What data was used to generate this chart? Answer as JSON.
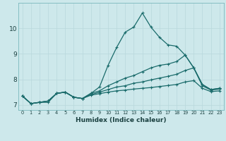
{
  "xlabel": "Humidex (Indice chaleur)",
  "bg_color": "#cde8eb",
  "line_color": "#1a6b6b",
  "grid_color": "#b8d8dc",
  "xlim": [
    -0.5,
    23.5
  ],
  "ylim": [
    6.8,
    11.0
  ],
  "xticks": [
    0,
    1,
    2,
    3,
    4,
    5,
    6,
    7,
    8,
    9,
    10,
    11,
    12,
    13,
    14,
    15,
    16,
    17,
    18,
    19,
    20,
    21,
    22,
    23
  ],
  "yticks": [
    7,
    8,
    9,
    10
  ],
  "series": [
    [
      7.35,
      7.05,
      7.1,
      7.1,
      7.45,
      7.5,
      7.3,
      7.25,
      7.45,
      7.7,
      8.55,
      9.25,
      9.85,
      10.05,
      10.6,
      10.05,
      9.65,
      9.35,
      9.3,
      8.95,
      8.45,
      7.8,
      7.6,
      7.65
    ],
    [
      7.35,
      7.05,
      7.1,
      7.15,
      7.45,
      7.5,
      7.3,
      7.25,
      7.45,
      7.55,
      7.75,
      7.9,
      8.05,
      8.15,
      8.3,
      8.45,
      8.55,
      8.6,
      8.7,
      8.95,
      8.45,
      7.8,
      7.6,
      7.65
    ],
    [
      7.35,
      7.05,
      7.1,
      7.15,
      7.45,
      7.5,
      7.3,
      7.25,
      7.4,
      7.5,
      7.6,
      7.7,
      7.75,
      7.85,
      7.9,
      7.98,
      8.05,
      8.12,
      8.2,
      8.35,
      8.45,
      7.75,
      7.58,
      7.62
    ],
    [
      7.35,
      7.05,
      7.1,
      7.15,
      7.45,
      7.5,
      7.3,
      7.25,
      7.38,
      7.44,
      7.5,
      7.55,
      7.58,
      7.62,
      7.65,
      7.68,
      7.72,
      7.76,
      7.8,
      7.9,
      7.95,
      7.65,
      7.52,
      7.55
    ]
  ]
}
